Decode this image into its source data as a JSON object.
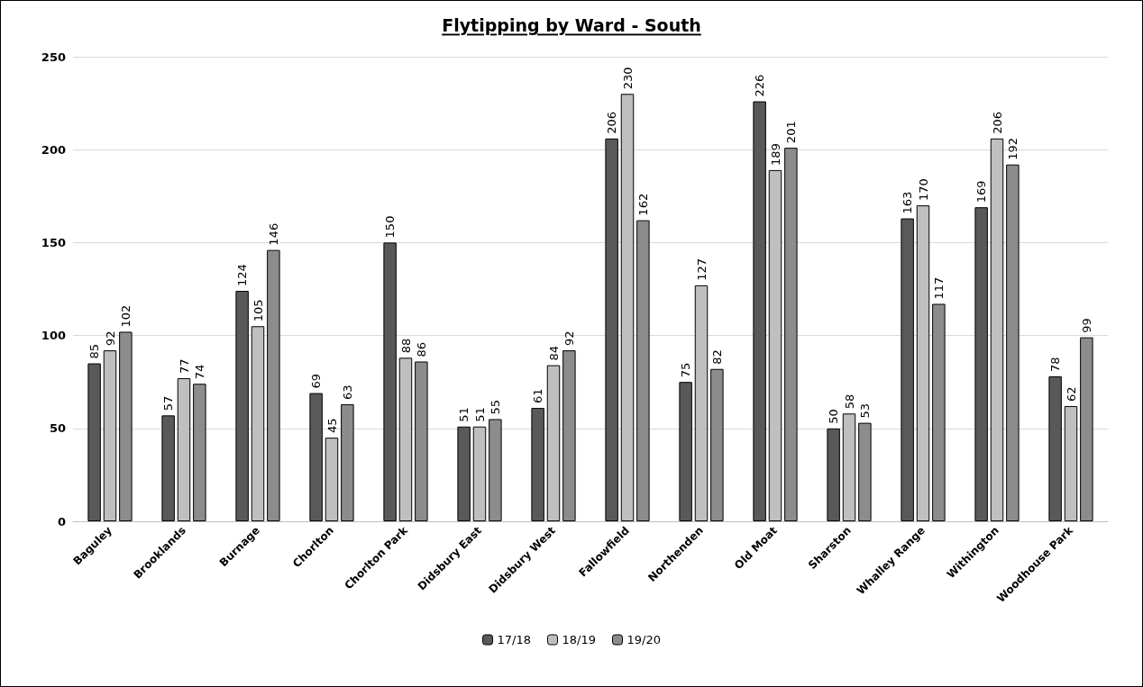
{
  "chart_data": {
    "type": "bar",
    "title": "Flytipping by Ward - South",
    "categories": [
      "Baguley",
      "Brooklands",
      "Burnage",
      "Chorlton",
      "Chorlton Park",
      "Didsbury East",
      "Didsbury West",
      "Fallowfield",
      "Northenden",
      "Old Moat",
      "Sharston",
      "Whalley Range",
      "Withington",
      "Woodhouse Park"
    ],
    "series": [
      {
        "name": "17/18",
        "color": "#595959",
        "values": [
          85,
          57,
          124,
          69,
          150,
          51,
          61,
          206,
          75,
          226,
          50,
          163,
          169,
          78
        ]
      },
      {
        "name": "18/19",
        "color": "#bfbfbf",
        "values": [
          92,
          77,
          105,
          45,
          88,
          51,
          84,
          230,
          127,
          189,
          58,
          170,
          206,
          62
        ]
      },
      {
        "name": "19/20",
        "color": "#8c8c8c",
        "values": [
          102,
          74,
          146,
          63,
          86,
          55,
          92,
          162,
          82,
          201,
          53,
          117,
          192,
          99
        ]
      }
    ],
    "ylim": [
      0,
      250
    ],
    "yticks": [
      0,
      50,
      100,
      150,
      200,
      250
    ],
    "grid": "y",
    "legend": "bottom",
    "data_labels": true
  }
}
